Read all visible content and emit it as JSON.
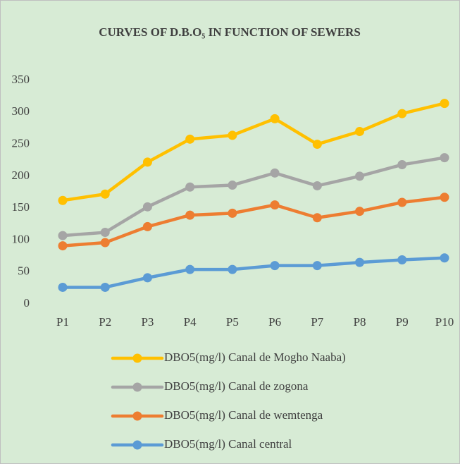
{
  "chart_data": {
    "type": "line",
    "title": "CURVES OF D.B.O₅ IN FUNCTION OF SEWERS",
    "categories": [
      "P1",
      "P2",
      "P3",
      "P4",
      "P5",
      "P6",
      "P7",
      "P8",
      "P9",
      "P10"
    ],
    "series": [
      {
        "name": "DBO5(mg/l) Canal de Mogho Naaba)",
        "color": "#ffc000",
        "values": [
          162,
          172,
          222,
          258,
          264,
          290,
          250,
          270,
          298,
          314
        ]
      },
      {
        "name": "DBO5(mg/l) Canal de zogona",
        "color": "#a5a5a5",
        "values": [
          107,
          112,
          152,
          183,
          186,
          205,
          185,
          200,
          218,
          229
        ]
      },
      {
        "name": "DBO5(mg/l) Canal de wemtenga",
        "color": "#ed7d31",
        "values": [
          91,
          96,
          121,
          139,
          142,
          155,
          135,
          145,
          159,
          167
        ]
      },
      {
        "name": "DBO5(mg/l) Canal central",
        "color": "#5b9bd5",
        "values": [
          26,
          26,
          41,
          54,
          54,
          60,
          60,
          65,
          69,
          72
        ]
      }
    ],
    "ylim": [
      0,
      350
    ],
    "yticks": [
      0,
      50,
      100,
      150,
      200,
      250,
      300,
      350
    ],
    "grid": false,
    "legend": "bottom"
  }
}
